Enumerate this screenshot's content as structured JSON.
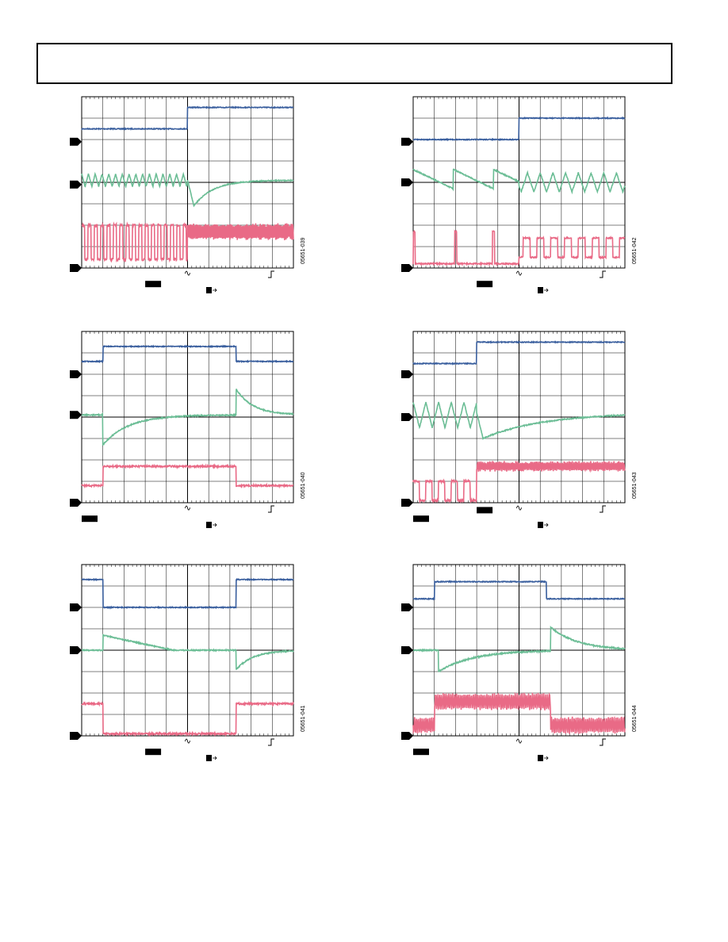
{
  "figures": [
    {
      "id": "05651-039"
    },
    {
      "id": "05651-042"
    },
    {
      "id": "05651-040"
    },
    {
      "id": "05651-043"
    },
    {
      "id": "05651-041"
    },
    {
      "id": "05651-044"
    }
  ]
}
